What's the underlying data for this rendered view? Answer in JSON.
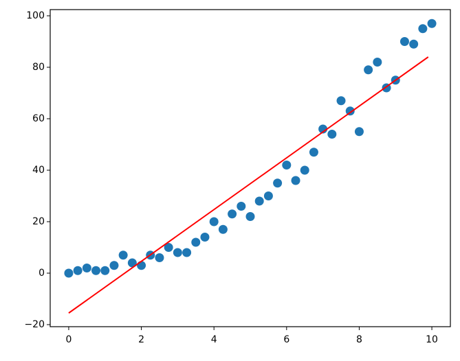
{
  "chart_data": {
    "type": "scatter",
    "series": [
      {
        "type": "scatter",
        "color": "#1f77b4",
        "x": [
          0,
          0.25,
          0.5,
          0.75,
          1,
          1.25,
          1.5,
          1.75,
          2,
          2.25,
          2.5,
          2.75,
          3,
          3.25,
          3.5,
          3.75,
          4,
          4.25,
          4.5,
          4.75,
          5,
          5.25,
          5.5,
          5.75,
          6,
          6.25,
          6.5,
          6.75,
          7,
          7.25,
          7.5,
          7.75,
          8,
          8.25,
          8.5,
          8.75,
          9,
          9.25,
          9.5,
          9.75,
          10
        ],
        "values": [
          0,
          1,
          2,
          1,
          1,
          3,
          7,
          4,
          3,
          7,
          6,
          10,
          8,
          8,
          12,
          14,
          20,
          17,
          23,
          26,
          22,
          28,
          30,
          35,
          42,
          36,
          40,
          47,
          56,
          54,
          67,
          63,
          55,
          79,
          82,
          72,
          75,
          90,
          89,
          95,
          97
        ]
      },
      {
        "type": "line",
        "color": "#ff0000",
        "x": [
          0,
          9.9
        ],
        "values": [
          -15.5,
          84
        ]
      }
    ],
    "xlim": [
      -0.51,
      10.51
    ],
    "xticks": [
      0,
      2,
      4,
      6,
      8,
      10
    ],
    "ylim": [
      -20.8,
      102.4
    ],
    "yticks": [
      {
        "value": -20,
        "label": "−20"
      },
      0,
      20,
      40,
      60,
      80,
      100
    ],
    "grid": false
  }
}
